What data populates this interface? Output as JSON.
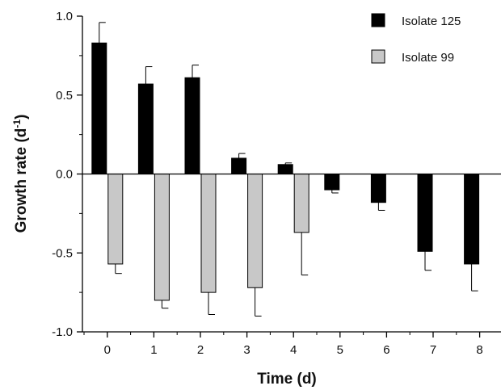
{
  "chart_data": {
    "type": "bar",
    "categories": [
      "0",
      "1",
      "2",
      "3",
      "4",
      "5",
      "6",
      "7",
      "8"
    ],
    "series": [
      {
        "name": "Isolate 125",
        "color": "#000000",
        "values": [
          0.83,
          0.57,
          0.61,
          0.1,
          0.06,
          -0.1,
          -0.18,
          -0.49,
          -0.57
        ],
        "errors": [
          0.13,
          0.11,
          0.08,
          0.03,
          0.01,
          0.02,
          0.05,
          0.12,
          0.17
        ]
      },
      {
        "name": "Isolate 99",
        "color": "#c8c8c8",
        "values": [
          -0.57,
          -0.8,
          -0.75,
          -0.72,
          -0.37,
          null,
          null,
          null,
          null
        ],
        "errors": [
          0.06,
          0.05,
          0.14,
          0.18,
          0.27,
          null,
          null,
          null,
          null
        ]
      }
    ],
    "ylim": [
      -1.0,
      1.0
    ],
    "yticks": [
      -1.0,
      -0.5,
      0.0,
      0.5,
      1.0
    ],
    "ytick_labels": [
      "-1.0",
      "-0.5",
      "0.0",
      "0.5",
      "1.0"
    ],
    "xlabel": "Time (d)",
    "ylabel": "Growth rate (d-1)",
    "ylabel_main": "Growth rate (d",
    "ylabel_sup": "-1",
    "ylabel_tail": ")",
    "legend_position": "top-right",
    "grid": false
  }
}
